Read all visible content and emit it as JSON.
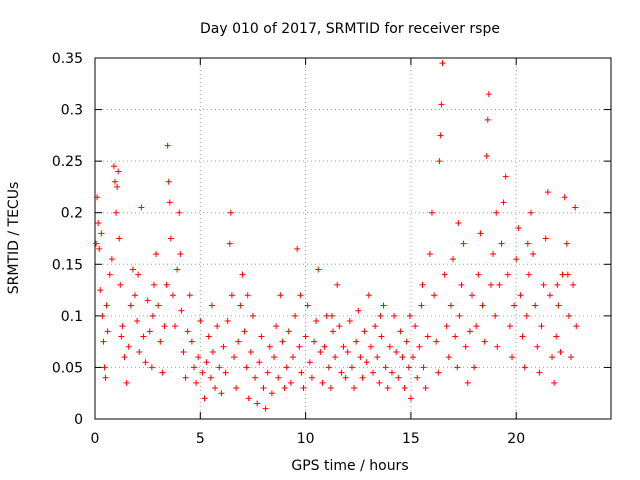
{
  "chart_data": {
    "type": "scatter",
    "title": "Day 010 of 2017, SRMTID for receiver rspe",
    "xlabel": "GPS time / hours",
    "ylabel": "SRMTID / TECUs",
    "xlim": [
      0,
      24.5
    ],
    "ylim": [
      0,
      0.35
    ],
    "xticks": [
      0,
      5,
      10,
      15,
      20
    ],
    "xtick_labels": [
      "0",
      "5",
      "10",
      "15",
      "20"
    ],
    "yticks": [
      0,
      0.05,
      0.1,
      0.15,
      0.2,
      0.25,
      0.3,
      0.35
    ],
    "ytick_labels": [
      "0",
      "0.05",
      "0.1",
      "0.15",
      "0.2",
      "0.25",
      "0.3",
      "0.35"
    ],
    "grid": true,
    "marker": "+",
    "color": "#ff0000",
    "series": [
      {
        "name": "SRMTID",
        "points": [
          [
            0.1,
            0.215
          ],
          [
            0.15,
            0.19
          ],
          [
            0.2,
            0.165
          ],
          [
            0.3,
            0.18
          ],
          [
            0.25,
            0.125
          ],
          [
            0.35,
            0.1
          ],
          [
            0.4,
            0.075
          ],
          [
            0.45,
            0.05
          ],
          [
            0.5,
            0.04
          ],
          [
            0.6,
            0.085
          ],
          [
            0.7,
            0.14
          ],
          [
            0.8,
            0.155
          ],
          [
            0.9,
            0.245
          ],
          [
            0.95,
            0.23
          ],
          [
            1.0,
            0.2
          ],
          [
            1.05,
            0.225
          ],
          [
            1.1,
            0.24
          ],
          [
            1.15,
            0.175
          ],
          [
            1.2,
            0.13
          ],
          [
            1.3,
            0.09
          ],
          [
            1.4,
            0.06
          ],
          [
            1.5,
            0.035
          ],
          [
            1.6,
            0.07
          ],
          [
            1.7,
            0.11
          ],
          [
            1.8,
            0.145
          ],
          [
            1.9,
            0.12
          ],
          [
            2.0,
            0.095
          ],
          [
            2.1,
            0.065
          ],
          [
            2.2,
            0.205
          ],
          [
            2.3,
            0.08
          ],
          [
            2.4,
            0.055
          ],
          [
            2.5,
            0.115
          ],
          [
            2.6,
            0.085
          ],
          [
            2.7,
            0.05
          ],
          [
            2.8,
            0.13
          ],
          [
            2.9,
            0.16
          ],
          [
            3.0,
            0.11
          ],
          [
            3.1,
            0.075
          ],
          [
            3.2,
            0.045
          ],
          [
            3.3,
            0.09
          ],
          [
            3.4,
            0.13
          ],
          [
            3.45,
            0.265
          ],
          [
            3.5,
            0.23
          ],
          [
            3.55,
            0.21
          ],
          [
            3.6,
            0.175
          ],
          [
            3.7,
            0.12
          ],
          [
            3.8,
            0.09
          ],
          [
            3.9,
            0.145
          ],
          [
            4.0,
            0.2
          ],
          [
            4.1,
            0.105
          ],
          [
            4.2,
            0.065
          ],
          [
            4.3,
            0.04
          ],
          [
            4.4,
            0.085
          ],
          [
            4.5,
            0.12
          ],
          [
            4.6,
            0.075
          ],
          [
            4.7,
            0.05
          ],
          [
            4.8,
            0.035
          ],
          [
            4.9,
            0.06
          ],
          [
            5.0,
            0.095
          ],
          [
            5.1,
            0.045
          ],
          [
            5.2,
            0.02
          ],
          [
            5.3,
            0.055
          ],
          [
            5.4,
            0.08
          ],
          [
            5.5,
            0.04
          ],
          [
            5.6,
            0.065
          ],
          [
            5.7,
            0.03
          ],
          [
            5.8,
            0.09
          ],
          [
            5.9,
            0.05
          ],
          [
            6.0,
            0.025
          ],
          [
            6.1,
            0.07
          ],
          [
            6.2,
            0.045
          ],
          [
            6.3,
            0.095
          ],
          [
            6.4,
            0.17
          ],
          [
            6.45,
            0.2
          ],
          [
            6.5,
            0.12
          ],
          [
            6.6,
            0.06
          ],
          [
            6.7,
            0.03
          ],
          [
            6.8,
            0.075
          ],
          [
            6.9,
            0.11
          ],
          [
            7.0,
            0.14
          ],
          [
            7.1,
            0.085
          ],
          [
            7.2,
            0.05
          ],
          [
            7.3,
            0.02
          ],
          [
            7.4,
            0.065
          ],
          [
            7.5,
            0.1
          ],
          [
            7.6,
            0.04
          ],
          [
            7.7,
            0.015
          ],
          [
            7.8,
            0.055
          ],
          [
            7.9,
            0.08
          ],
          [
            8.0,
            0.03
          ],
          [
            8.1,
            0.01
          ],
          [
            8.2,
            0.045
          ],
          [
            8.3,
            0.07
          ],
          [
            8.4,
            0.025
          ],
          [
            8.5,
            0.06
          ],
          [
            8.6,
            0.09
          ],
          [
            8.7,
            0.04
          ],
          [
            8.8,
            0.12
          ],
          [
            8.9,
            0.075
          ],
          [
            9.0,
            0.03
          ],
          [
            9.1,
            0.05
          ],
          [
            9.2,
            0.085
          ],
          [
            9.3,
            0.035
          ],
          [
            9.4,
            0.06
          ],
          [
            9.5,
            0.1
          ],
          [
            9.6,
            0.165
          ],
          [
            9.7,
            0.07
          ],
          [
            9.8,
            0.045
          ],
          [
            9.9,
            0.03
          ],
          [
            10.0,
            0.08
          ],
          [
            10.1,
            0.11
          ],
          [
            10.2,
            0.055
          ],
          [
            10.3,
            0.04
          ],
          [
            10.4,
            0.075
          ],
          [
            10.5,
            0.095
          ],
          [
            10.6,
            0.145
          ],
          [
            10.7,
            0.065
          ],
          [
            10.8,
            0.035
          ],
          [
            10.9,
            0.07
          ],
          [
            11.0,
            0.1
          ],
          [
            11.1,
            0.05
          ],
          [
            11.2,
            0.03
          ],
          [
            11.3,
            0.085
          ],
          [
            11.4,
            0.06
          ],
          [
            11.5,
            0.13
          ],
          [
            11.6,
            0.09
          ],
          [
            11.7,
            0.045
          ],
          [
            11.8,
            0.07
          ],
          [
            11.9,
            0.04
          ],
          [
            12.0,
            0.065
          ],
          [
            12.1,
            0.095
          ],
          [
            12.2,
            0.05
          ],
          [
            12.3,
            0.03
          ],
          [
            12.4,
            0.075
          ],
          [
            12.5,
            0.105
          ],
          [
            12.6,
            0.06
          ],
          [
            12.7,
            0.04
          ],
          [
            12.8,
            0.085
          ],
          [
            12.9,
            0.055
          ],
          [
            13.0,
            0.12
          ],
          [
            13.1,
            0.07
          ],
          [
            13.2,
            0.045
          ],
          [
            13.3,
            0.09
          ],
          [
            13.4,
            0.06
          ],
          [
            13.5,
            0.035
          ],
          [
            13.6,
            0.08
          ],
          [
            13.7,
            0.11
          ],
          [
            13.8,
            0.05
          ],
          [
            13.9,
            0.03
          ],
          [
            14.0,
            0.07
          ],
          [
            14.1,
            0.045
          ],
          [
            14.2,
            0.1
          ],
          [
            14.3,
            0.065
          ],
          [
            14.4,
            0.04
          ],
          [
            14.5,
            0.085
          ],
          [
            14.6,
            0.06
          ],
          [
            14.7,
            0.03
          ],
          [
            14.8,
            0.075
          ],
          [
            14.9,
            0.05
          ],
          [
            15.0,
            0.02
          ],
          [
            15.1,
            0.06
          ],
          [
            15.2,
            0.09
          ],
          [
            15.3,
            0.04
          ],
          [
            15.4,
            0.07
          ],
          [
            15.5,
            0.11
          ],
          [
            15.6,
            0.05
          ],
          [
            15.7,
            0.03
          ],
          [
            15.8,
            0.08
          ],
          [
            15.9,
            0.16
          ],
          [
            16.0,
            0.2
          ],
          [
            16.1,
            0.12
          ],
          [
            16.2,
            0.075
          ],
          [
            16.3,
            0.045
          ],
          [
            16.35,
            0.25
          ],
          [
            16.4,
            0.275
          ],
          [
            16.45,
            0.305
          ],
          [
            16.5,
            0.345
          ],
          [
            16.6,
            0.14
          ],
          [
            16.7,
            0.09
          ],
          [
            16.8,
            0.06
          ],
          [
            16.9,
            0.11
          ],
          [
            17.0,
            0.155
          ],
          [
            17.1,
            0.08
          ],
          [
            17.2,
            0.05
          ],
          [
            17.3,
            0.1
          ],
          [
            17.4,
            0.13
          ],
          [
            17.5,
            0.17
          ],
          [
            17.6,
            0.07
          ],
          [
            17.7,
            0.035
          ],
          [
            17.8,
            0.085
          ],
          [
            17.9,
            0.12
          ],
          [
            18.0,
            0.05
          ],
          [
            18.1,
            0.09
          ],
          [
            18.2,
            0.14
          ],
          [
            18.3,
            0.18
          ],
          [
            18.4,
            0.11
          ],
          [
            18.5,
            0.075
          ],
          [
            18.6,
            0.255
          ],
          [
            18.65,
            0.29
          ],
          [
            18.7,
            0.315
          ],
          [
            18.8,
            0.13
          ],
          [
            18.9,
            0.16
          ],
          [
            19.0,
            0.1
          ],
          [
            19.1,
            0.07
          ],
          [
            19.2,
            0.13
          ],
          [
            19.3,
            0.17
          ],
          [
            19.4,
            0.21
          ],
          [
            19.5,
            0.235
          ],
          [
            19.6,
            0.14
          ],
          [
            19.7,
            0.09
          ],
          [
            19.8,
            0.06
          ],
          [
            19.9,
            0.11
          ],
          [
            20.0,
            0.155
          ],
          [
            20.1,
            0.185
          ],
          [
            20.2,
            0.12
          ],
          [
            20.3,
            0.08
          ],
          [
            20.4,
            0.05
          ],
          [
            20.5,
            0.1
          ],
          [
            20.6,
            0.14
          ],
          [
            20.7,
            0.2
          ],
          [
            20.8,
            0.16
          ],
          [
            20.9,
            0.11
          ],
          [
            21.0,
            0.07
          ],
          [
            21.1,
            0.045
          ],
          [
            21.2,
            0.09
          ],
          [
            21.3,
            0.13
          ],
          [
            21.4,
            0.175
          ],
          [
            21.5,
            0.22
          ],
          [
            21.6,
            0.12
          ],
          [
            21.7,
            0.06
          ],
          [
            21.8,
            0.035
          ],
          [
            21.9,
            0.08
          ],
          [
            22.0,
            0.11
          ],
          [
            22.1,
            0.065
          ],
          [
            22.2,
            0.14
          ],
          [
            22.3,
            0.215
          ],
          [
            22.4,
            0.17
          ],
          [
            22.5,
            0.1
          ],
          [
            22.6,
            0.06
          ],
          [
            22.7,
            0.13
          ],
          [
            22.8,
            0.205
          ],
          [
            22.85,
            0.09
          ],
          [
            0.55,
            0.11
          ],
          [
            1.25,
            0.08
          ],
          [
            2.05,
            0.14
          ],
          [
            2.75,
            0.1
          ],
          [
            4.05,
            0.16
          ],
          [
            5.55,
            0.11
          ],
          [
            7.25,
            0.12
          ],
          [
            9.75,
            0.12
          ],
          [
            11.25,
            0.1
          ],
          [
            13.55,
            0.1
          ],
          [
            14.95,
            0.1
          ],
          [
            15.55,
            0.13
          ],
          [
            17.25,
            0.19
          ],
          [
            19.05,
            0.2
          ],
          [
            20.55,
            0.17
          ],
          [
            21.95,
            0.13
          ],
          [
            22.45,
            0.14
          ],
          [
            0.05,
            0.17
          ]
        ]
      }
    ]
  }
}
